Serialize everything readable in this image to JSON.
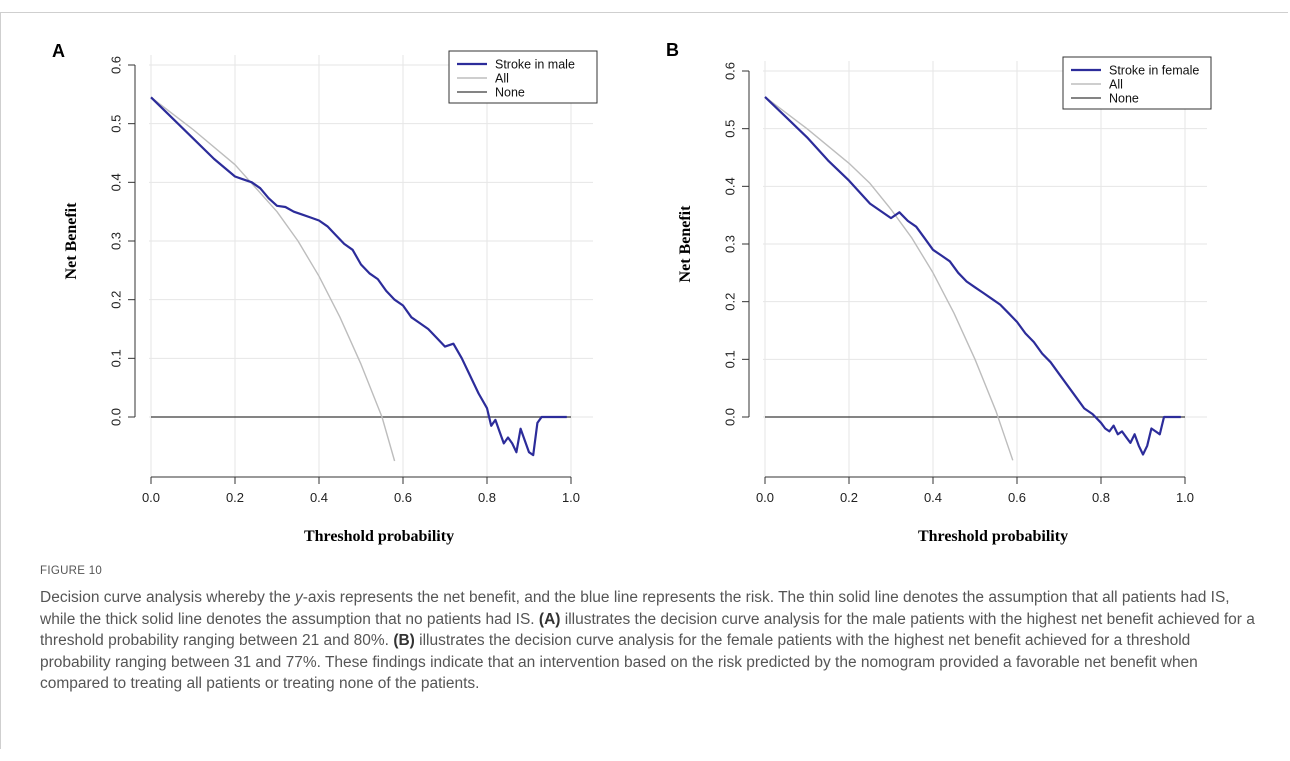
{
  "figure": {
    "label": "FIGURE 10",
    "caption_segments": [
      {
        "text": "Decision curve analysis whereby the "
      },
      {
        "text": "y",
        "italic": true
      },
      {
        "text": "-axis represents the net benefit, and the blue line represents the risk. The thin solid line denotes the assumption that all patients had IS, while the thick solid line denotes the assumption that no patients had IS. "
      },
      {
        "text": "(A)",
        "bold": true
      },
      {
        "text": " illustrates the decision curve analysis for the male patients with the highest net benefit achieved for a threshold probability ranging between 21 and 80%. "
      },
      {
        "text": "(B)",
        "bold": true
      },
      {
        "text": " illustrates the decision curve analysis for the female patients with the highest net benefit achieved for a threshold probability ranging between 31 and 77%. These findings indicate that an intervention based on the risk predicted by the nomogram provided a favorable net benefit when compared to treating all patients or treating none of the patients."
      }
    ]
  },
  "colors": {
    "model": "#2c2c9a",
    "all": "#bdbdbd",
    "none": "#3a3a3a",
    "grid": "#e6e6e6"
  },
  "chart_data": [
    {
      "type": "line",
      "panel": "A",
      "xlabel": "Threshold probability",
      "ylabel": "Net Benefit",
      "xlim": [
        0,
        1.0
      ],
      "ylim": [
        -0.075,
        0.6
      ],
      "xticks": [
        "0.0",
        "0.2",
        "0.4",
        "0.6",
        "0.8",
        "1.0"
      ],
      "yticks": [
        "0.0",
        "0.1",
        "0.2",
        "0.3",
        "0.4",
        "0.5",
        "0.6"
      ],
      "grid": true,
      "legend_position": "top-right",
      "series": [
        {
          "name": "Stroke in male",
          "style": "model",
          "x": [
            0.0,
            0.05,
            0.1,
            0.15,
            0.2,
            0.22,
            0.24,
            0.26,
            0.28,
            0.3,
            0.32,
            0.34,
            0.36,
            0.38,
            0.4,
            0.42,
            0.44,
            0.46,
            0.48,
            0.5,
            0.52,
            0.54,
            0.56,
            0.58,
            0.6,
            0.62,
            0.64,
            0.66,
            0.68,
            0.7,
            0.72,
            0.74,
            0.76,
            0.78,
            0.8,
            0.81,
            0.82,
            0.83,
            0.84,
            0.85,
            0.86,
            0.87,
            0.88,
            0.89,
            0.9,
            0.91,
            0.92,
            0.93,
            0.94,
            0.95,
            0.97,
            0.99
          ],
          "y": [
            0.545,
            0.51,
            0.475,
            0.44,
            0.41,
            0.405,
            0.4,
            0.39,
            0.373,
            0.36,
            0.358,
            0.35,
            0.345,
            0.34,
            0.335,
            0.325,
            0.31,
            0.295,
            0.285,
            0.26,
            0.245,
            0.235,
            0.215,
            0.2,
            0.19,
            0.17,
            0.16,
            0.15,
            0.135,
            0.12,
            0.125,
            0.1,
            0.07,
            0.04,
            0.015,
            -0.015,
            -0.005,
            -0.025,
            -0.045,
            -0.035,
            -0.045,
            -0.06,
            -0.02,
            -0.04,
            -0.06,
            -0.065,
            -0.01,
            0.0,
            0.0,
            0.0,
            0.0,
            0.0
          ]
        },
        {
          "name": "All",
          "style": "all",
          "x": [
            0.0,
            0.1,
            0.2,
            0.25,
            0.3,
            0.35,
            0.4,
            0.45,
            0.5,
            0.55,
            0.58
          ],
          "y": [
            0.545,
            0.49,
            0.43,
            0.39,
            0.35,
            0.3,
            0.24,
            0.17,
            0.09,
            0.0,
            -0.075
          ]
        },
        {
          "name": "None",
          "style": "none",
          "x": [
            0.0,
            1.0
          ],
          "y": [
            0.0,
            0.0
          ]
        }
      ]
    },
    {
      "type": "line",
      "panel": "B",
      "xlabel": "Threshold probability",
      "ylabel": "Net Benefit",
      "xlim": [
        0,
        1.0
      ],
      "ylim": [
        -0.075,
        0.6
      ],
      "xticks": [
        "0.0",
        "0.2",
        "0.4",
        "0.6",
        "0.8",
        "1.0"
      ],
      "yticks": [
        "0.0",
        "0.1",
        "0.2",
        "0.3",
        "0.4",
        "0.5",
        "0.6"
      ],
      "grid": true,
      "legend_position": "top-right",
      "series": [
        {
          "name": "Stroke in female",
          "style": "model",
          "x": [
            0.0,
            0.05,
            0.1,
            0.15,
            0.2,
            0.25,
            0.3,
            0.32,
            0.34,
            0.36,
            0.38,
            0.4,
            0.42,
            0.44,
            0.46,
            0.48,
            0.5,
            0.52,
            0.54,
            0.56,
            0.58,
            0.6,
            0.62,
            0.64,
            0.66,
            0.68,
            0.7,
            0.72,
            0.74,
            0.76,
            0.78,
            0.8,
            0.81,
            0.82,
            0.83,
            0.84,
            0.85,
            0.86,
            0.87,
            0.88,
            0.89,
            0.9,
            0.91,
            0.92,
            0.93,
            0.94,
            0.95,
            0.97,
            0.99
          ],
          "y": [
            0.555,
            0.52,
            0.485,
            0.445,
            0.41,
            0.37,
            0.345,
            0.355,
            0.34,
            0.33,
            0.31,
            0.29,
            0.28,
            0.27,
            0.25,
            0.235,
            0.225,
            0.215,
            0.205,
            0.195,
            0.18,
            0.165,
            0.145,
            0.13,
            0.11,
            0.095,
            0.075,
            0.055,
            0.035,
            0.015,
            0.005,
            -0.01,
            -0.02,
            -0.025,
            -0.015,
            -0.03,
            -0.025,
            -0.035,
            -0.045,
            -0.03,
            -0.05,
            -0.065,
            -0.05,
            -0.02,
            -0.025,
            -0.03,
            0.0,
            0.0,
            0.0
          ]
        },
        {
          "name": "All",
          "style": "all",
          "x": [
            0.0,
            0.1,
            0.2,
            0.25,
            0.3,
            0.35,
            0.4,
            0.45,
            0.5,
            0.55,
            0.59
          ],
          "y": [
            0.555,
            0.5,
            0.44,
            0.405,
            0.36,
            0.31,
            0.25,
            0.18,
            0.1,
            0.01,
            -0.075
          ]
        },
        {
          "name": "None",
          "style": "none",
          "x": [
            0.0,
            1.0
          ],
          "y": [
            0.0,
            0.0
          ]
        }
      ]
    }
  ]
}
